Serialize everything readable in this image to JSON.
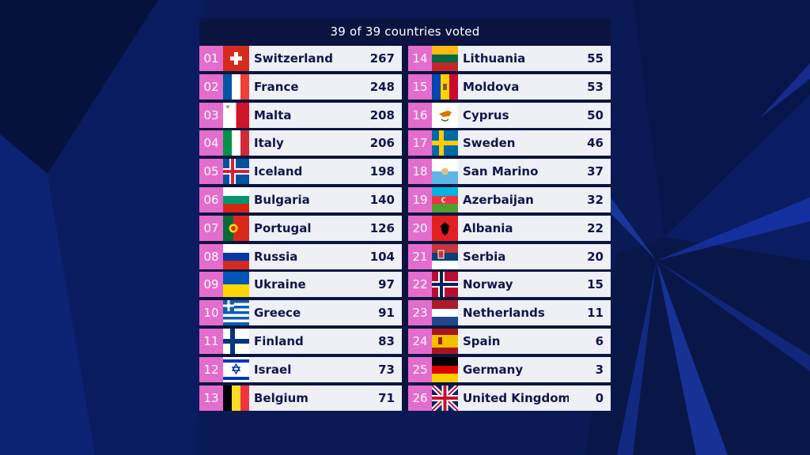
{
  "header": {
    "title": "39 of 39 countries voted"
  },
  "colors": {
    "rank_bg": "#e46ccc",
    "row_bg": "#eef0f6",
    "board_bg": "#0b1440",
    "text": "#10164a"
  },
  "left": [
    {
      "rank": "01",
      "country": "Switzerland",
      "points": "267",
      "flag": "switzerland-flag-icon"
    },
    {
      "rank": "02",
      "country": "France",
      "points": "248",
      "flag": "france-flag-icon"
    },
    {
      "rank": "03",
      "country": "Malta",
      "points": "208",
      "flag": "malta-flag-icon"
    },
    {
      "rank": "04",
      "country": "Italy",
      "points": "206",
      "flag": "italy-flag-icon"
    },
    {
      "rank": "05",
      "country": "Iceland",
      "points": "198",
      "flag": "iceland-flag-icon"
    },
    {
      "rank": "06",
      "country": "Bulgaria",
      "points": "140",
      "flag": "bulgaria-flag-icon"
    },
    {
      "rank": "07",
      "country": "Portugal",
      "points": "126",
      "flag": "portugal-flag-icon"
    },
    {
      "rank": "08",
      "country": "Russia",
      "points": "104",
      "flag": "russia-flag-icon"
    },
    {
      "rank": "09",
      "country": "Ukraine",
      "points": "97",
      "flag": "ukraine-flag-icon"
    },
    {
      "rank": "10",
      "country": "Greece",
      "points": "91",
      "flag": "greece-flag-icon"
    },
    {
      "rank": "11",
      "country": "Finland",
      "points": "83",
      "flag": "finland-flag-icon"
    },
    {
      "rank": "12",
      "country": "Israel",
      "points": "73",
      "flag": "israel-flag-icon"
    },
    {
      "rank": "13",
      "country": "Belgium",
      "points": "71",
      "flag": "belgium-flag-icon"
    }
  ],
  "right": [
    {
      "rank": "14",
      "country": "Lithuania",
      "points": "55",
      "flag": "lithuania-flag-icon"
    },
    {
      "rank": "15",
      "country": "Moldova",
      "points": "53",
      "flag": "moldova-flag-icon"
    },
    {
      "rank": "16",
      "country": "Cyprus",
      "points": "50",
      "flag": "cyprus-flag-icon"
    },
    {
      "rank": "17",
      "country": "Sweden",
      "points": "46",
      "flag": "sweden-flag-icon"
    },
    {
      "rank": "18",
      "country": "San Marino",
      "points": "37",
      "flag": "san-marino-flag-icon"
    },
    {
      "rank": "19",
      "country": "Azerbaijan",
      "points": "32",
      "flag": "azerbaijan-flag-icon"
    },
    {
      "rank": "20",
      "country": "Albania",
      "points": "22",
      "flag": "albania-flag-icon"
    },
    {
      "rank": "21",
      "country": "Serbia",
      "points": "20",
      "flag": "serbia-flag-icon"
    },
    {
      "rank": "22",
      "country": "Norway",
      "points": "15",
      "flag": "norway-flag-icon"
    },
    {
      "rank": "23",
      "country": "Netherlands",
      "points": "11",
      "flag": "netherlands-flag-icon"
    },
    {
      "rank": "24",
      "country": "Spain",
      "points": "6",
      "flag": "spain-flag-icon"
    },
    {
      "rank": "25",
      "country": "Germany",
      "points": "3",
      "flag": "germany-flag-icon"
    },
    {
      "rank": "26",
      "country": "United Kingdom",
      "points": "0",
      "flag": "united-kingdom-flag-icon"
    }
  ]
}
